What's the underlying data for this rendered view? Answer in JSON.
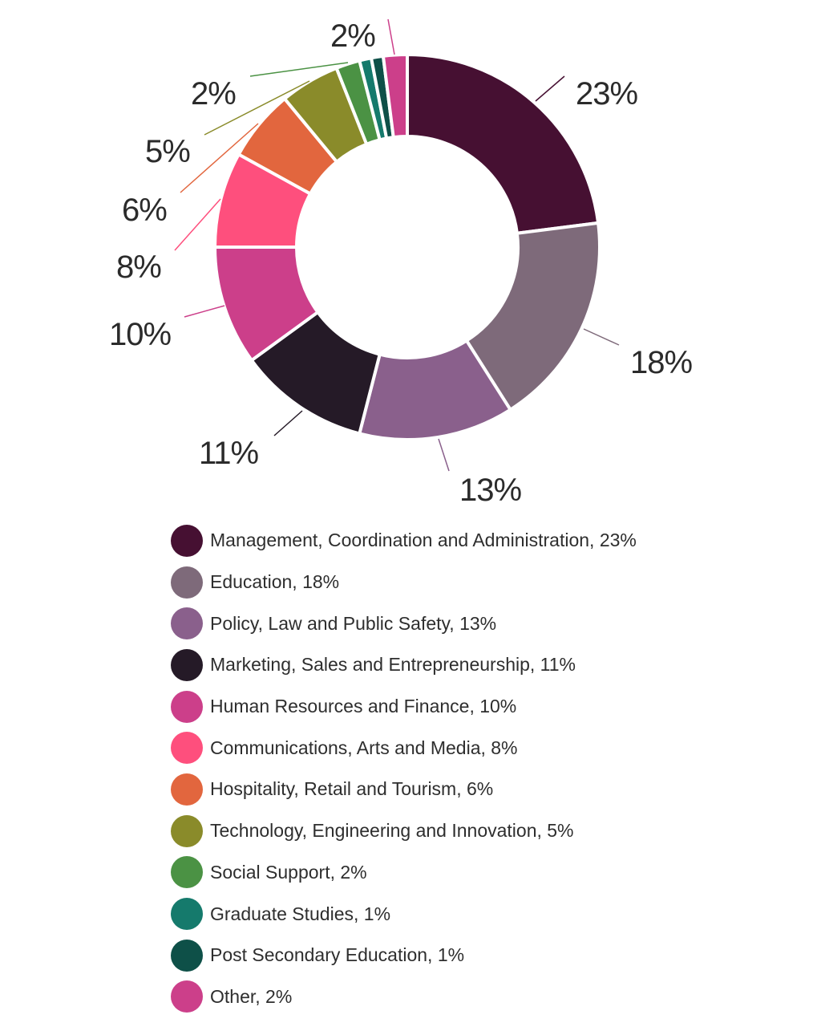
{
  "chart_data": {
    "type": "pie",
    "donut": true,
    "title": "",
    "slices": [
      {
        "label": "Management, Coordination and Administration",
        "value": 23,
        "display": "23%",
        "legend": "Management, Coordination and Administration, 23%",
        "color": "#461032"
      },
      {
        "label": "Education",
        "value": 18,
        "display": "18%",
        "legend": "Education, 18%",
        "color": "#7e6a7a"
      },
      {
        "label": "Policy, Law and Public Safety",
        "value": 13,
        "display": "13%",
        "legend": "Policy, Law and Public Safety, 13%",
        "color": "#8a608c"
      },
      {
        "label": "Marketing, Sales and Entrepreneurship",
        "value": 11,
        "display": "11%",
        "legend": "Marketing, Sales and Entrepreneurship, 11%",
        "color": "#251a27"
      },
      {
        "label": "Human Resources and Finance",
        "value": 10,
        "display": "10%",
        "legend": "Human Resources and Finance, 10%",
        "color": "#cc3f8a"
      },
      {
        "label": "Communications, Arts and Media",
        "value": 8,
        "display": "8%",
        "legend": "Communications, Arts and Media, 8%",
        "color": "#fe4f7d"
      },
      {
        "label": "Hospitality, Retail and Tourism",
        "value": 6,
        "display": "6%",
        "legend": "Hospitality, Retail and Tourism, 6%",
        "color": "#e2663e"
      },
      {
        "label": "Technology, Engineering and Innovation",
        "value": 5,
        "display": "5%",
        "legend": "Technology, Engineering and Innovation, 5%",
        "color": "#8a8b2a"
      },
      {
        "label": "Social Support",
        "value": 2,
        "display": "2%",
        "legend": "Social Support, 2%",
        "color": "#4b9244"
      },
      {
        "label": "Graduate Studies",
        "value": 1,
        "display": "",
        "legend": "Graduate Studies, 1%",
        "color": "#157a6c"
      },
      {
        "label": "Post Secondary Education",
        "value": 1,
        "display": "",
        "legend": "Post Secondary Education, 1%",
        "color": "#0e5048"
      },
      {
        "label": "Other",
        "value": 2,
        "display": "2%",
        "legend": "Other, 2%",
        "color": "#cc3f8a"
      }
    ],
    "legend_position": "bottom"
  }
}
